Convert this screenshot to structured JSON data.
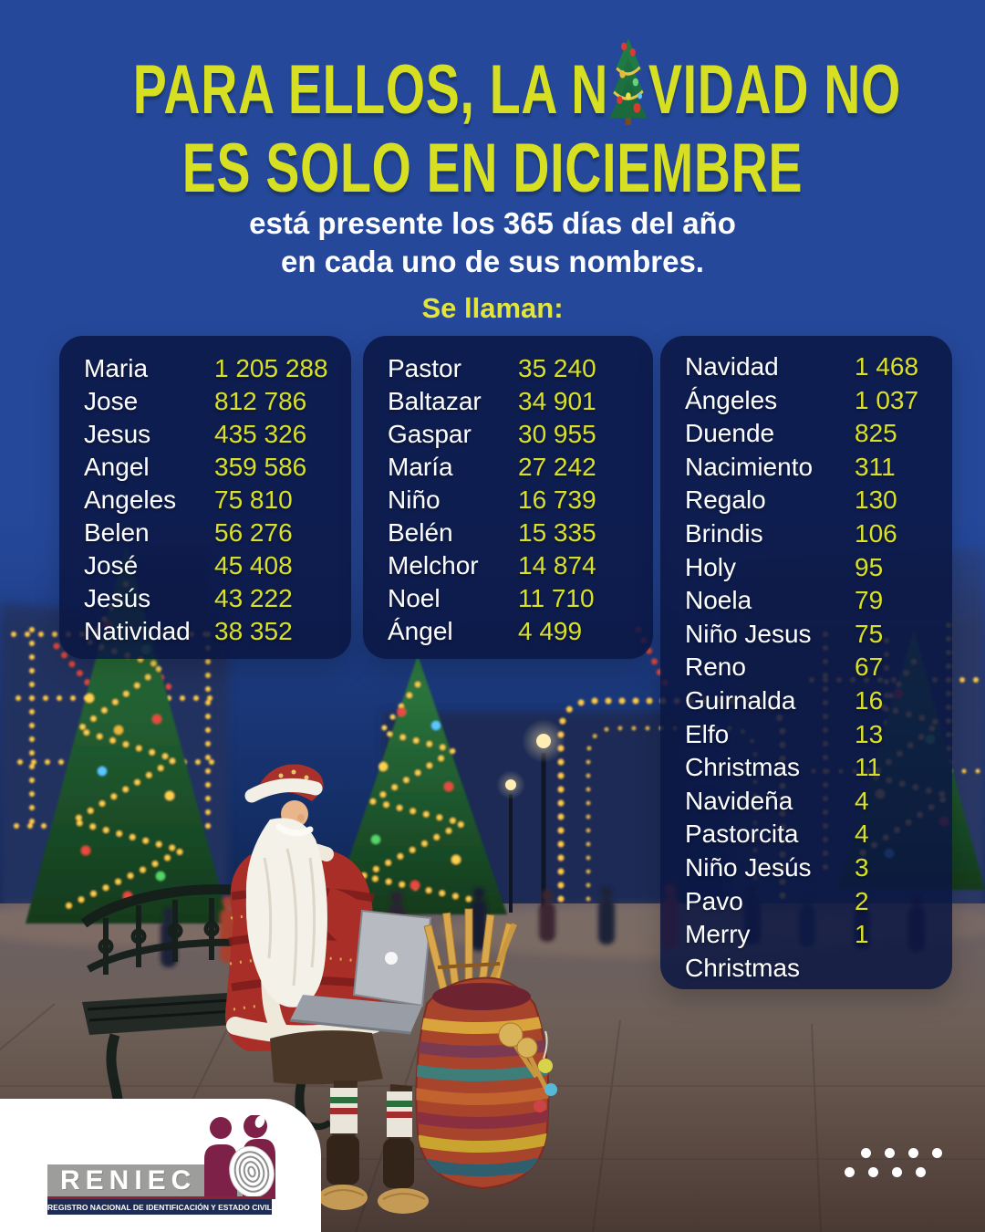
{
  "colors": {
    "background_blue": "#26489a",
    "accent_yellow": "#d9e023",
    "panel_navy": "#0a1642",
    "text_white": "#ffffff",
    "logo_maroon": "#7e2149",
    "logo_gray": "#9d9d9b",
    "logo_navy": "#1e2b52"
  },
  "header": {
    "title_line1_pre": "PARA ELLOS, LA N",
    "title_line1_post": "VIDAD NO",
    "title_line2": "ES SOLO EN DICIEMBRE",
    "subtitle_line1": "está presente los 365 días del año",
    "subtitle_line2": "en cada uno de sus nombres.",
    "lead_in": "Se llaman:"
  },
  "panels": [
    {
      "rows": [
        {
          "name": "Maria",
          "value": "1 205 288"
        },
        {
          "name": "Jose",
          "value": "812 786"
        },
        {
          "name": "Jesus",
          "value": "435 326"
        },
        {
          "name": "Angel",
          "value": "359 586"
        },
        {
          "name": "Angeles",
          "value": "75 810"
        },
        {
          "name": "Belen",
          "value": "56 276"
        },
        {
          "name": "José",
          "value": "45 408"
        },
        {
          "name": "Jesús",
          "value": "43 222"
        },
        {
          "name": "Natividad",
          "value": "38 352"
        }
      ]
    },
    {
      "rows": [
        {
          "name": "Pastor",
          "value": "35 240"
        },
        {
          "name": "Baltazar",
          "value": "34 901"
        },
        {
          "name": "Gaspar",
          "value": "30 955"
        },
        {
          "name": "María",
          "value": "27 242"
        },
        {
          "name": "Niño",
          "value": "16 739"
        },
        {
          "name": "Belén",
          "value": "15 335"
        },
        {
          "name": "Melchor",
          "value": "14 874"
        },
        {
          "name": "Noel",
          "value": "11 710"
        },
        {
          "name": "Ángel",
          "value": "4 499"
        }
      ]
    },
    {
      "rows": [
        {
          "name": "Navidad",
          "value": "1 468"
        },
        {
          "name": "Ángeles",
          "value": "1 037"
        },
        {
          "name": "Duende",
          "value": "825"
        },
        {
          "name": "Nacimiento",
          "value": "311"
        },
        {
          "name": "Regalo",
          "value": "130"
        },
        {
          "name": "Brindis",
          "value": "106"
        },
        {
          "name": "Holy",
          "value": "95"
        },
        {
          "name": "Noela",
          "value": "79"
        },
        {
          "name": "Niño Jesus",
          "value": "75"
        },
        {
          "name": "Reno",
          "value": "67"
        },
        {
          "name": "Guirnalda",
          "value": "16"
        },
        {
          "name": "Elfo",
          "value": "13"
        },
        {
          "name": "Christmas",
          "value": "11"
        },
        {
          "name": "Navideña",
          "value": "4"
        },
        {
          "name": "Pastorcita",
          "value": "4"
        },
        {
          "name": "Niño Jesús",
          "value": "3"
        },
        {
          "name": "Pavo",
          "value": "2"
        },
        {
          "name": "Merry",
          "value": "1"
        },
        {
          "name": "Christmas",
          "value": ""
        }
      ]
    }
  ],
  "footer": {
    "logo_brand": "RENIEC",
    "logo_tagline": "REGISTRO NACIONAL DE IDENTIFICACIÓN Y ESTADO CIVIL",
    "dot_rows": [
      4,
      4
    ]
  },
  "scene": {
    "description": "Santa Claus seated on an iron bench using a laptop next to an Andean striped bag with pan flutes, on a Christmas-lit street at dusk"
  }
}
